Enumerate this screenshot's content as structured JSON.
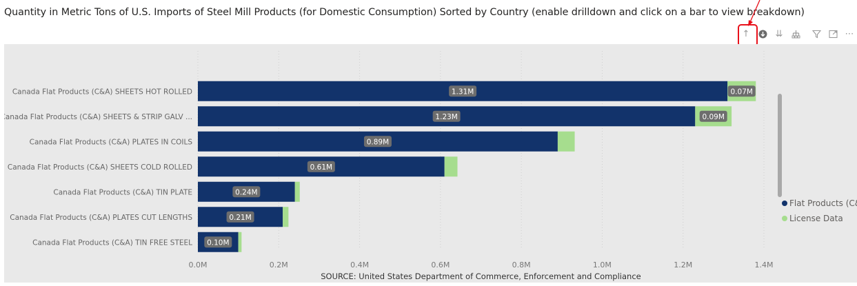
{
  "title": "Quantity in Metric Tons of U.S. Imports of Steel Mill Products (for Domestic Consumption) Sorted by Country (enable drilldown and click on a bar to view breakdown)",
  "toolbar": {
    "icons": [
      "drill-up-icon",
      "drill-down-toggle-icon",
      "next-level-icon",
      "expand-hierarchy-icon",
      "filter-icon",
      "focus-mode-icon",
      "more-options-icon"
    ]
  },
  "chart_data": {
    "type": "bar",
    "orientation": "horizontal",
    "stacked": true,
    "categories": [
      "Canada Flat Products (C&A) SHEETS HOT ROLLED",
      "Canada Flat Products (C&A) SHEETS & STRIP GALV ...",
      "Canada Flat Products (C&A) PLATES IN COILS",
      "Canada Flat Products (C&A) SHEETS COLD ROLLED",
      "Canada Flat Products (C&A) TIN PLATE",
      "Canada Flat Products (C&A) PLATES CUT LENGTHS",
      "Canada Flat Products (C&A) TIN FREE STEEL"
    ],
    "series": [
      {
        "name": "Flat Products (C&A)",
        "color": "#12336b",
        "values": [
          1310000,
          1230000,
          890000,
          610000,
          240000,
          210000,
          100000
        ],
        "labels": [
          "1.31M",
          "1.23M",
          "0.89M",
          "0.61M",
          "0.24M",
          "0.21M",
          "0.10M"
        ]
      },
      {
        "name": "License Data",
        "color": "#a6dd8e",
        "values": [
          70000,
          90000,
          42000,
          32000,
          12000,
          14000,
          8000
        ],
        "labels": [
          "0.07M",
          "0.09M",
          "",
          "",
          "",
          "",
          ""
        ]
      }
    ],
    "xlim": [
      0,
      1400000
    ],
    "xticks": [
      0,
      200000,
      400000,
      600000,
      800000,
      1000000,
      1200000,
      1400000
    ],
    "xtick_labels": [
      "0.0M",
      "0.2M",
      "0.4M",
      "0.6M",
      "0.8M",
      "1.0M",
      "1.2M",
      "1.4M"
    ],
    "xlabel": "SOURCE: United States Department of Commerce, Enforcement and Compliance",
    "ylabel": "",
    "legend_position": "right",
    "grid": true
  }
}
